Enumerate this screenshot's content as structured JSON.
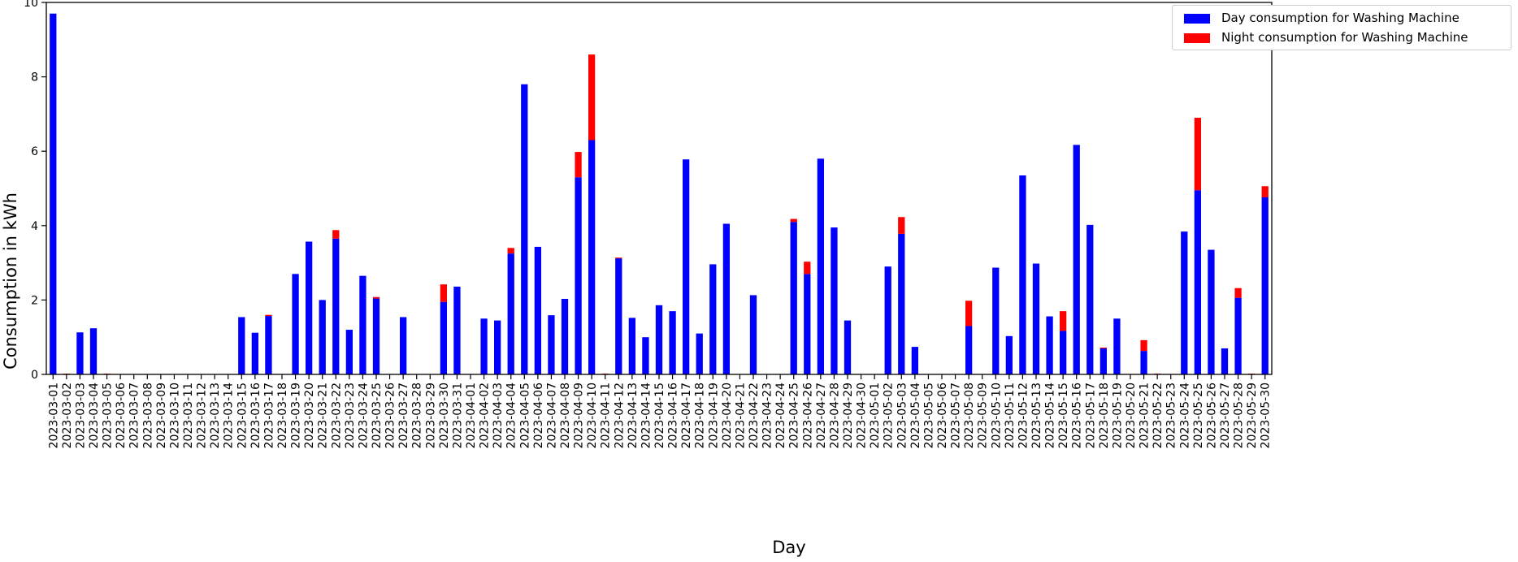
{
  "chart_data": {
    "type": "bar",
    "stacked": true,
    "xlabel": "Day",
    "ylabel": "Consumption in kWh",
    "ylim": [
      0,
      10
    ],
    "yticks": [
      "0",
      "2",
      "4",
      "6",
      "8",
      "10"
    ],
    "grid": false,
    "legend_position": "top-right",
    "categories": [
      "2023-03-01",
      "2023-03-02",
      "2023-03-03",
      "2023-03-04",
      "2023-03-05",
      "2023-03-06",
      "2023-03-07",
      "2023-03-08",
      "2023-03-09",
      "2023-03-10",
      "2023-03-11",
      "2023-03-12",
      "2023-03-13",
      "2023-03-14",
      "2023-03-15",
      "2023-03-16",
      "2023-03-17",
      "2023-03-18",
      "2023-03-19",
      "2023-03-20",
      "2023-03-21",
      "2023-03-22",
      "2023-03-23",
      "2023-03-24",
      "2023-03-25",
      "2023-03-26",
      "2023-03-27",
      "2023-03-28",
      "2023-03-29",
      "2023-03-30",
      "2023-03-31",
      "2023-04-01",
      "2023-04-02",
      "2023-04-03",
      "2023-04-04",
      "2023-04-05",
      "2023-04-06",
      "2023-04-07",
      "2023-04-08",
      "2023-04-09",
      "2023-04-10",
      "2023-04-11",
      "2023-04-12",
      "2023-04-13",
      "2023-04-14",
      "2023-04-15",
      "2023-04-16",
      "2023-04-17",
      "2023-04-18",
      "2023-04-19",
      "2023-04-20",
      "2023-04-21",
      "2023-04-22",
      "2023-04-23",
      "2023-04-24",
      "2023-04-25",
      "2023-04-26",
      "2023-04-27",
      "2023-04-28",
      "2023-04-29",
      "2023-04-30",
      "2023-05-01",
      "2023-05-02",
      "2023-05-03",
      "2023-05-04",
      "2023-05-05",
      "2023-05-06",
      "2023-05-07",
      "2023-05-08",
      "2023-05-09",
      "2023-05-10",
      "2023-05-11",
      "2023-05-12",
      "2023-05-13",
      "2023-05-14",
      "2023-05-15",
      "2023-05-16",
      "2023-05-17",
      "2023-05-18",
      "2023-05-19",
      "2023-05-20",
      "2023-05-21",
      "2023-05-22",
      "2023-05-23",
      "2023-05-24",
      "2023-05-25",
      "2023-05-26",
      "2023-05-27",
      "2023-05-28",
      "2023-05-29",
      "2023-05-30"
    ],
    "series": [
      {
        "name": "Day consumption for Washing Machine",
        "color": "#0000ff",
        "values": [
          9.7,
          0,
          1.13,
          1.24,
          0,
          0,
          0,
          0,
          0,
          0,
          0,
          0,
          0,
          0,
          1.54,
          1.12,
          1.57,
          0,
          2.7,
          3.57,
          2.0,
          3.65,
          1.2,
          2.65,
          2.04,
          0,
          1.54,
          0,
          0,
          1.95,
          2.36,
          0,
          1.5,
          1.45,
          3.25,
          7.8,
          3.43,
          1.59,
          2.03,
          5.3,
          6.3,
          0,
          3.12,
          1.52,
          1.0,
          1.86,
          1.7,
          5.78,
          1.1,
          2.96,
          4.05,
          0,
          2.13,
          0,
          0,
          4.1,
          2.7,
          5.8,
          3.95,
          1.45,
          0,
          0,
          2.9,
          3.78,
          0.74,
          0,
          0,
          0,
          1.3,
          0,
          2.87,
          1.03,
          5.35,
          2.98,
          1.56,
          1.17,
          6.17,
          4.02,
          0.7,
          1.5,
          0,
          0.63,
          0,
          0,
          3.84,
          4.95,
          3.35,
          0.7,
          2.06,
          0,
          4.76
        ]
      },
      {
        "name": "Night consumption for Washing Machine",
        "color": "#ff0000",
        "values": [
          0,
          0.02,
          0,
          0,
          0.02,
          0,
          0,
          0,
          0,
          0,
          0,
          0,
          0,
          0,
          0,
          0,
          0.03,
          0,
          0,
          0,
          0,
          0.23,
          0,
          0,
          0.04,
          0,
          0,
          0,
          0,
          0.47,
          0,
          0,
          0,
          0,
          0.15,
          0,
          0,
          0,
          0,
          0.68,
          2.3,
          0.02,
          0.02,
          0,
          0,
          0,
          0,
          0,
          0,
          0,
          0,
          0,
          0,
          0,
          0,
          0.08,
          0.33,
          0,
          0,
          0,
          0,
          0,
          0,
          0.45,
          0,
          0,
          0,
          0,
          0.68,
          0,
          0,
          0,
          0,
          0,
          0,
          0.53,
          0,
          0,
          0.02,
          0,
          0,
          0.29,
          0.02,
          0,
          0,
          1.95,
          0,
          0,
          0.26,
          0.02,
          0.3
        ]
      }
    ]
  }
}
